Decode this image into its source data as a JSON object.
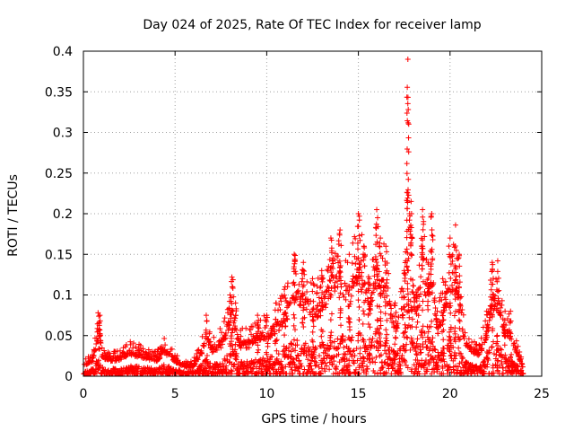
{
  "chart_data": {
    "type": "scatter",
    "title": "Day 024 of 2025, Rate Of TEC Index for receiver lamp",
    "xlabel": "GPS time / hours",
    "ylabel": "ROTI / TECUs",
    "xlim": [
      0,
      25
    ],
    "ylim": [
      0,
      0.4
    ],
    "xticks": [
      "0",
      "5",
      "10",
      "15",
      "20",
      "25"
    ],
    "yticks": [
      "0",
      "0.05",
      "0.1",
      "0.15",
      "0.2",
      "0.25",
      "0.3",
      "0.35",
      "0.4"
    ],
    "grid": true,
    "marker": "+",
    "color": "#ff0000",
    "envelope": {
      "x": [
        0.0,
        0.5,
        0.8,
        0.9,
        1.0,
        1.5,
        2.0,
        2.5,
        3.0,
        3.5,
        4.0,
        4.4,
        5.0,
        5.5,
        6.0,
        6.5,
        6.7,
        7.0,
        7.5,
        8.0,
        8.1,
        8.3,
        8.5,
        9.0,
        9.5,
        10.0,
        10.5,
        11.0,
        11.5,
        12.0,
        12.5,
        13.0,
        13.5,
        14.0,
        14.5,
        15.0,
        15.3,
        15.6,
        16.0,
        16.2,
        16.5,
        17.0,
        17.5,
        17.7,
        17.9,
        18.2,
        18.5,
        18.8,
        19.0,
        19.3,
        19.6,
        20.0,
        20.3,
        20.5,
        20.8,
        21.2,
        21.6,
        22.0,
        22.3,
        22.6,
        23.0,
        23.3,
        23.6,
        24.0
      ],
      "y": [
        0.02,
        0.03,
        0.078,
        0.075,
        0.04,
        0.03,
        0.035,
        0.045,
        0.04,
        0.035,
        0.03,
        0.048,
        0.03,
        0.02,
        0.02,
        0.05,
        0.075,
        0.05,
        0.06,
        0.1,
        0.122,
        0.09,
        0.06,
        0.06,
        0.075,
        0.075,
        0.09,
        0.11,
        0.15,
        0.14,
        0.12,
        0.13,
        0.17,
        0.18,
        0.15,
        0.2,
        0.16,
        0.12,
        0.205,
        0.17,
        0.16,
        0.09,
        0.13,
        0.39,
        0.2,
        0.1,
        0.205,
        0.14,
        0.2,
        0.08,
        0.12,
        0.17,
        0.186,
        0.15,
        0.06,
        0.05,
        0.04,
        0.08,
        0.14,
        0.142,
        0.08,
        0.08,
        0.05,
        0.015
      ]
    }
  }
}
